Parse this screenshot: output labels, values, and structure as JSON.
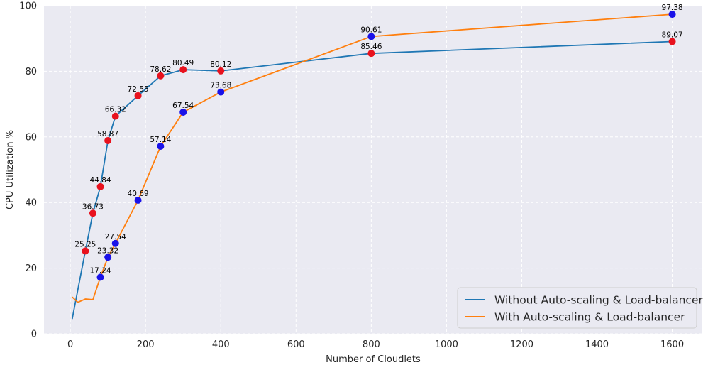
{
  "chart_data": {
    "type": "line",
    "xlabel": "Number of Cloudlets",
    "ylabel": "CPU Utilization %",
    "xlim": [
      -70,
      1680
    ],
    "ylim": [
      0,
      100
    ],
    "xticks": [
      0,
      200,
      400,
      600,
      800,
      1000,
      1200,
      1400,
      1600
    ],
    "yticks": [
      0,
      20,
      40,
      60,
      80,
      100
    ],
    "grid": true,
    "legend_position": "bottom-right",
    "colors": {
      "background": "#eaeaf2",
      "grid": "#ffffff",
      "without": "#1f77b4",
      "with": "#ff7f0e",
      "marker_without": "#e8121e",
      "marker_with": "#1a12e8"
    },
    "series": [
      {
        "name": "Without Auto-scaling & Load-balancer",
        "x": [
          5,
          40,
          60,
          80,
          100,
          120,
          180,
          240,
          300,
          400,
          800,
          1600
        ],
        "y": [
          4.5,
          25.25,
          36.73,
          44.84,
          58.87,
          66.32,
          72.55,
          78.62,
          80.49,
          80.12,
          85.46,
          89.07
        ],
        "markers": [
          {
            "x": 40,
            "y": 25.25,
            "label": "25.25"
          },
          {
            "x": 60,
            "y": 36.73,
            "label": "36.73"
          },
          {
            "x": 80,
            "y": 44.84,
            "label": "44.84"
          },
          {
            "x": 100,
            "y": 58.87,
            "label": "58.87"
          },
          {
            "x": 120,
            "y": 66.32,
            "label": "66.32"
          },
          {
            "x": 180,
            "y": 72.55,
            "label": "72.55"
          },
          {
            "x": 240,
            "y": 78.62,
            "label": "78.62"
          },
          {
            "x": 300,
            "y": 80.49,
            "label": "80.49"
          },
          {
            "x": 400,
            "y": 80.12,
            "label": "80.12"
          },
          {
            "x": 800,
            "y": 85.46,
            "label": "85.46"
          },
          {
            "x": 1600,
            "y": 89.07,
            "label": "89.07"
          }
        ]
      },
      {
        "name": "With Auto-scaling & Load-balancer",
        "x": [
          5,
          20,
          40,
          60,
          80,
          100,
          120,
          180,
          240,
          300,
          400,
          800,
          1600
        ],
        "y": [
          11.2,
          9.6,
          10.6,
          10.4,
          17.24,
          23.32,
          27.54,
          40.69,
          57.14,
          67.54,
          73.68,
          90.61,
          97.38
        ],
        "markers": [
          {
            "x": 80,
            "y": 17.24,
            "label": "17.24"
          },
          {
            "x": 100,
            "y": 23.32,
            "label": "23.32"
          },
          {
            "x": 120,
            "y": 27.54,
            "label": "27.54"
          },
          {
            "x": 180,
            "y": 40.69,
            "label": "40.69"
          },
          {
            "x": 240,
            "y": 57.14,
            "label": "57.14"
          },
          {
            "x": 300,
            "y": 67.54,
            "label": "67.54"
          },
          {
            "x": 400,
            "y": 73.68,
            "label": "73.68"
          },
          {
            "x": 800,
            "y": 90.61,
            "label": "90.61"
          },
          {
            "x": 1600,
            "y": 97.38,
            "label": "97.38"
          }
        ]
      }
    ]
  }
}
